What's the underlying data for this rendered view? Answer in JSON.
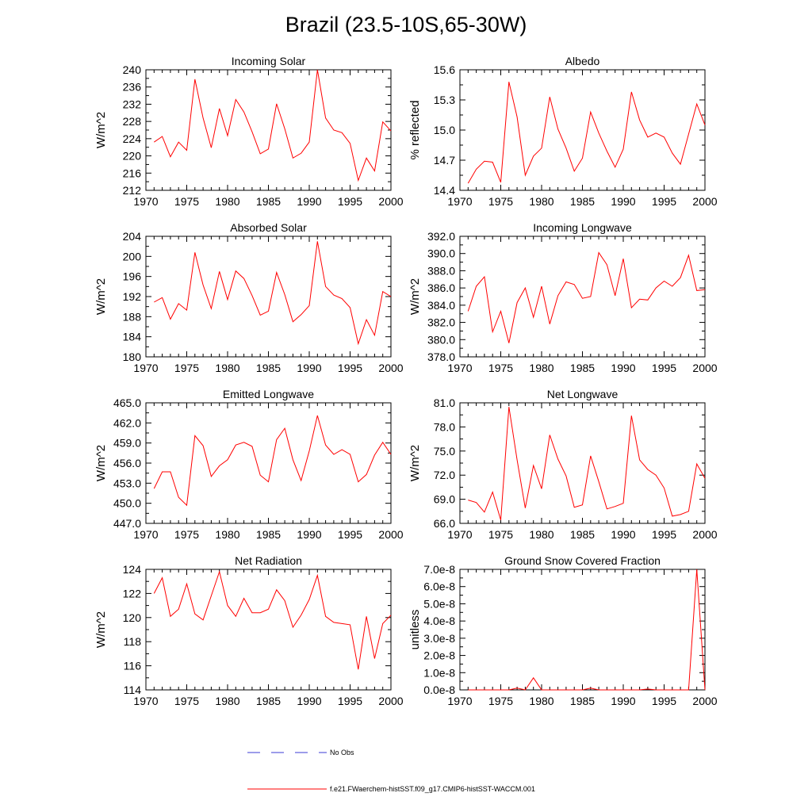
{
  "figure": {
    "title": "Brazil (23.5-10S,65-30W)",
    "line_color": "#ff0000",
    "obs_color": "#3b3bd4",
    "legend": [
      {
        "label": "No Obs",
        "style": "dashed",
        "color": "#3b3bd4"
      },
      {
        "label": "f.e21.FWaerchem-histSST.f09_g17.CMIP6-histSST-WACCM.001",
        "style": "solid",
        "color": "#ff0000"
      }
    ]
  },
  "chart_data": [
    {
      "type": "line",
      "title": "Incoming Solar",
      "ylabel": "W/m^2",
      "xlim": [
        1970,
        2000
      ],
      "xticks": [
        1970,
        1975,
        1980,
        1985,
        1990,
        1995,
        2000
      ],
      "ylim": [
        212,
        240
      ],
      "yticks": [
        "212",
        "216",
        "220",
        "224",
        "228",
        "232",
        "236",
        "240"
      ],
      "series": [
        {
          "x": [
            1971,
            1972,
            1973,
            1974,
            1975,
            1976,
            1977,
            1978,
            1979,
            1980,
            1981,
            1982,
            1983,
            1984,
            1985,
            1986,
            1987,
            1988,
            1989,
            1990,
            1991,
            1992,
            1993,
            1994,
            1995,
            1996,
            1997,
            1998,
            1999,
            2000
          ],
          "values": [
            223.2,
            224.5,
            219.8,
            223.2,
            221.3,
            237.8,
            228.8,
            221.9,
            231.0,
            224.7,
            233.1,
            230.2,
            225.6,
            220.5,
            221.6,
            232.1,
            226.3,
            219.5,
            220.6,
            223.2,
            240.0,
            228.8,
            226.0,
            225.4,
            222.9,
            214.3,
            219.5,
            216.5,
            227.9,
            225.8
          ]
        }
      ]
    },
    {
      "type": "line",
      "title": "Albedo",
      "ylabel": "% reflected",
      "xlim": [
        1970,
        2000
      ],
      "xticks": [
        1970,
        1975,
        1980,
        1985,
        1990,
        1995,
        2000
      ],
      "ylim": [
        14.4,
        15.6
      ],
      "yticks": [
        "14.4",
        "14.7",
        "15.0",
        "15.3",
        "15.6"
      ],
      "series": [
        {
          "x": [
            1971,
            1972,
            1973,
            1974,
            1975,
            1976,
            1977,
            1978,
            1979,
            1980,
            1981,
            1982,
            1983,
            1984,
            1985,
            1986,
            1987,
            1988,
            1989,
            1990,
            1991,
            1992,
            1993,
            1994,
            1995,
            1996,
            1997,
            1998,
            1999,
            2000
          ],
          "values": [
            14.47,
            14.61,
            14.69,
            14.68,
            14.48,
            15.48,
            15.13,
            14.55,
            14.74,
            14.82,
            15.33,
            15.01,
            14.82,
            14.59,
            14.72,
            15.18,
            14.97,
            14.79,
            14.63,
            14.81,
            15.38,
            15.1,
            14.93,
            14.97,
            14.93,
            14.77,
            14.66,
            14.96,
            15.26,
            15.05
          ]
        }
      ]
    },
    {
      "type": "line",
      "title": "Absorbed Solar",
      "ylabel": "W/m^2",
      "xlim": [
        1970,
        2000
      ],
      "xticks": [
        1970,
        1975,
        1980,
        1985,
        1990,
        1995,
        2000
      ],
      "ylim": [
        180,
        204
      ],
      "yticks": [
        "180",
        "184",
        "188",
        "192",
        "196",
        "200",
        "204"
      ],
      "series": [
        {
          "x": [
            1971,
            1972,
            1973,
            1974,
            1975,
            1976,
            1977,
            1978,
            1979,
            1980,
            1981,
            1982,
            1983,
            1984,
            1985,
            1986,
            1987,
            1988,
            1989,
            1990,
            1991,
            1992,
            1993,
            1994,
            1995,
            1996,
            1997,
            1998,
            1999,
            2000
          ],
          "values": [
            190.9,
            191.8,
            187.5,
            190.6,
            189.3,
            200.8,
            194.3,
            189.6,
            197.0,
            191.4,
            197.1,
            195.6,
            192.2,
            188.3,
            189.1,
            196.8,
            192.4,
            187.0,
            188.4,
            190.2,
            203.0,
            194.0,
            192.3,
            191.6,
            189.8,
            182.6,
            187.4,
            184.3,
            193.0,
            192.0
          ]
        }
      ]
    },
    {
      "type": "line",
      "title": "Incoming Longwave",
      "ylabel": "W/m^2",
      "xlim": [
        1970,
        2000
      ],
      "xticks": [
        1970,
        1975,
        1980,
        1985,
        1990,
        1995,
        2000
      ],
      "ylim": [
        378,
        392
      ],
      "yticks": [
        "378.0",
        "380.0",
        "382.0",
        "384.0",
        "386.0",
        "388.0",
        "390.0",
        "392.0"
      ],
      "series": [
        {
          "x": [
            1971,
            1972,
            1973,
            1974,
            1975,
            1976,
            1977,
            1978,
            1979,
            1980,
            1981,
            1982,
            1983,
            1984,
            1985,
            1986,
            1987,
            1988,
            1989,
            1990,
            1991,
            1992,
            1993,
            1994,
            1995,
            1996,
            1997,
            1998,
            1999,
            2000
          ],
          "values": [
            383.3,
            386.2,
            387.3,
            380.9,
            383.3,
            379.6,
            384.3,
            386.0,
            382.6,
            386.2,
            381.8,
            385.1,
            386.7,
            386.4,
            384.8,
            385.0,
            390.1,
            388.7,
            385.1,
            389.4,
            383.7,
            384.7,
            384.6,
            386.0,
            386.8,
            386.2,
            387.2,
            389.8,
            385.7,
            385.8
          ]
        }
      ]
    },
    {
      "type": "line",
      "title": "Emitted Longwave",
      "ylabel": "W/m^2",
      "xlim": [
        1970,
        2000
      ],
      "xticks": [
        1970,
        1975,
        1980,
        1985,
        1990,
        1995,
        2000
      ],
      "ylim": [
        447,
        465
      ],
      "yticks": [
        "447.0",
        "450.0",
        "453.0",
        "456.0",
        "459.0",
        "462.0",
        "465.0"
      ],
      "series": [
        {
          "x": [
            1971,
            1972,
            1973,
            1974,
            1975,
            1976,
            1977,
            1978,
            1979,
            1980,
            1981,
            1982,
            1983,
            1984,
            1985,
            1986,
            1987,
            1988,
            1989,
            1990,
            1991,
            1992,
            1993,
            1994,
            1995,
            1996,
            1997,
            1998,
            1999,
            2000
          ],
          "values": [
            452.2,
            454.7,
            454.7,
            450.9,
            449.7,
            460.1,
            458.6,
            454.0,
            455.6,
            456.5,
            458.7,
            459.1,
            458.5,
            454.2,
            453.2,
            459.5,
            461.2,
            456.5,
            453.4,
            457.8,
            463.1,
            458.7,
            457.3,
            458.0,
            457.3,
            453.2,
            454.3,
            457.2,
            459.1,
            457.3
          ]
        }
      ]
    },
    {
      "type": "line",
      "title": "Net Longwave",
      "ylabel": "W/m^2",
      "xlim": [
        1970,
        2000
      ],
      "xticks": [
        1970,
        1975,
        1980,
        1985,
        1990,
        1995,
        2000
      ],
      "ylim": [
        66,
        81
      ],
      "yticks": [
        "66.0",
        "69.0",
        "72.0",
        "75.0",
        "78.0",
        "81.0"
      ],
      "series": [
        {
          "x": [
            1971,
            1972,
            1973,
            1974,
            1975,
            1976,
            1977,
            1978,
            1979,
            1980,
            1981,
            1982,
            1983,
            1984,
            1985,
            1986,
            1987,
            1988,
            1989,
            1990,
            1991,
            1992,
            1993,
            1994,
            1995,
            1996,
            1997,
            1998,
            1999,
            2000
          ],
          "values": [
            68.9,
            68.6,
            67.4,
            69.9,
            66.4,
            80.5,
            73.9,
            67.9,
            73.2,
            70.3,
            77.0,
            74.0,
            71.9,
            68.0,
            68.3,
            74.4,
            71.2,
            67.8,
            68.1,
            68.5,
            79.4,
            73.9,
            72.7,
            72.0,
            70.4,
            66.9,
            67.1,
            67.5,
            73.4,
            71.6
          ]
        }
      ]
    },
    {
      "type": "line",
      "title": "Net Radiation",
      "ylabel": "W/m^2",
      "xlim": [
        1970,
        2000
      ],
      "xticks": [
        1970,
        1975,
        1980,
        1985,
        1990,
        1995,
        2000
      ],
      "ylim": [
        114,
        124
      ],
      "yticks": [
        "114",
        "116",
        "118",
        "120",
        "122",
        "124"
      ],
      "series": [
        {
          "x": [
            1971,
            1972,
            1973,
            1974,
            1975,
            1976,
            1977,
            1978,
            1979,
            1980,
            1981,
            1982,
            1983,
            1984,
            1985,
            1986,
            1987,
            1988,
            1989,
            1990,
            1991,
            1992,
            1993,
            1994,
            1995,
            1996,
            1997,
            1998,
            1999,
            2000
          ],
          "values": [
            122.0,
            123.3,
            120.1,
            120.7,
            122.8,
            120.3,
            119.8,
            121.8,
            123.8,
            121.0,
            120.1,
            121.6,
            120.4,
            120.4,
            120.7,
            122.3,
            121.4,
            119.2,
            120.2,
            121.5,
            123.5,
            120.1,
            119.6,
            119.5,
            119.4,
            115.7,
            120.1,
            116.6,
            119.5,
            120.2
          ]
        }
      ]
    },
    {
      "type": "line",
      "title": "Ground Snow Covered Fraction",
      "ylabel": "unitless",
      "xlim": [
        1970,
        2000
      ],
      "xticks": [
        1970,
        1975,
        1980,
        1985,
        1990,
        1995,
        2000
      ],
      "ylim": [
        0,
        7e-08
      ],
      "yticks": [
        "0.0e-8",
        "1.0e-8",
        "2.0e-8",
        "3.0e-8",
        "4.0e-8",
        "5.0e-8",
        "6.0e-8",
        "7.0e-8"
      ],
      "series": [
        {
          "x": [
            1971,
            1972,
            1973,
            1974,
            1975,
            1976,
            1977,
            1978,
            1979,
            1980,
            1981,
            1982,
            1983,
            1984,
            1985,
            1986,
            1987,
            1988,
            1989,
            1990,
            1991,
            1992,
            1993,
            1994,
            1995,
            1996,
            1997,
            1998,
            1999,
            2000
          ],
          "values": [
            0,
            0,
            0,
            0,
            0,
            0,
            1e-09,
            0,
            7e-09,
            0,
            0,
            0,
            0,
            0,
            0,
            1e-09,
            0,
            0,
            0,
            0,
            0,
            0,
            5e-10,
            0,
            0,
            0,
            0,
            0,
            7e-08,
            0
          ]
        }
      ]
    }
  ]
}
